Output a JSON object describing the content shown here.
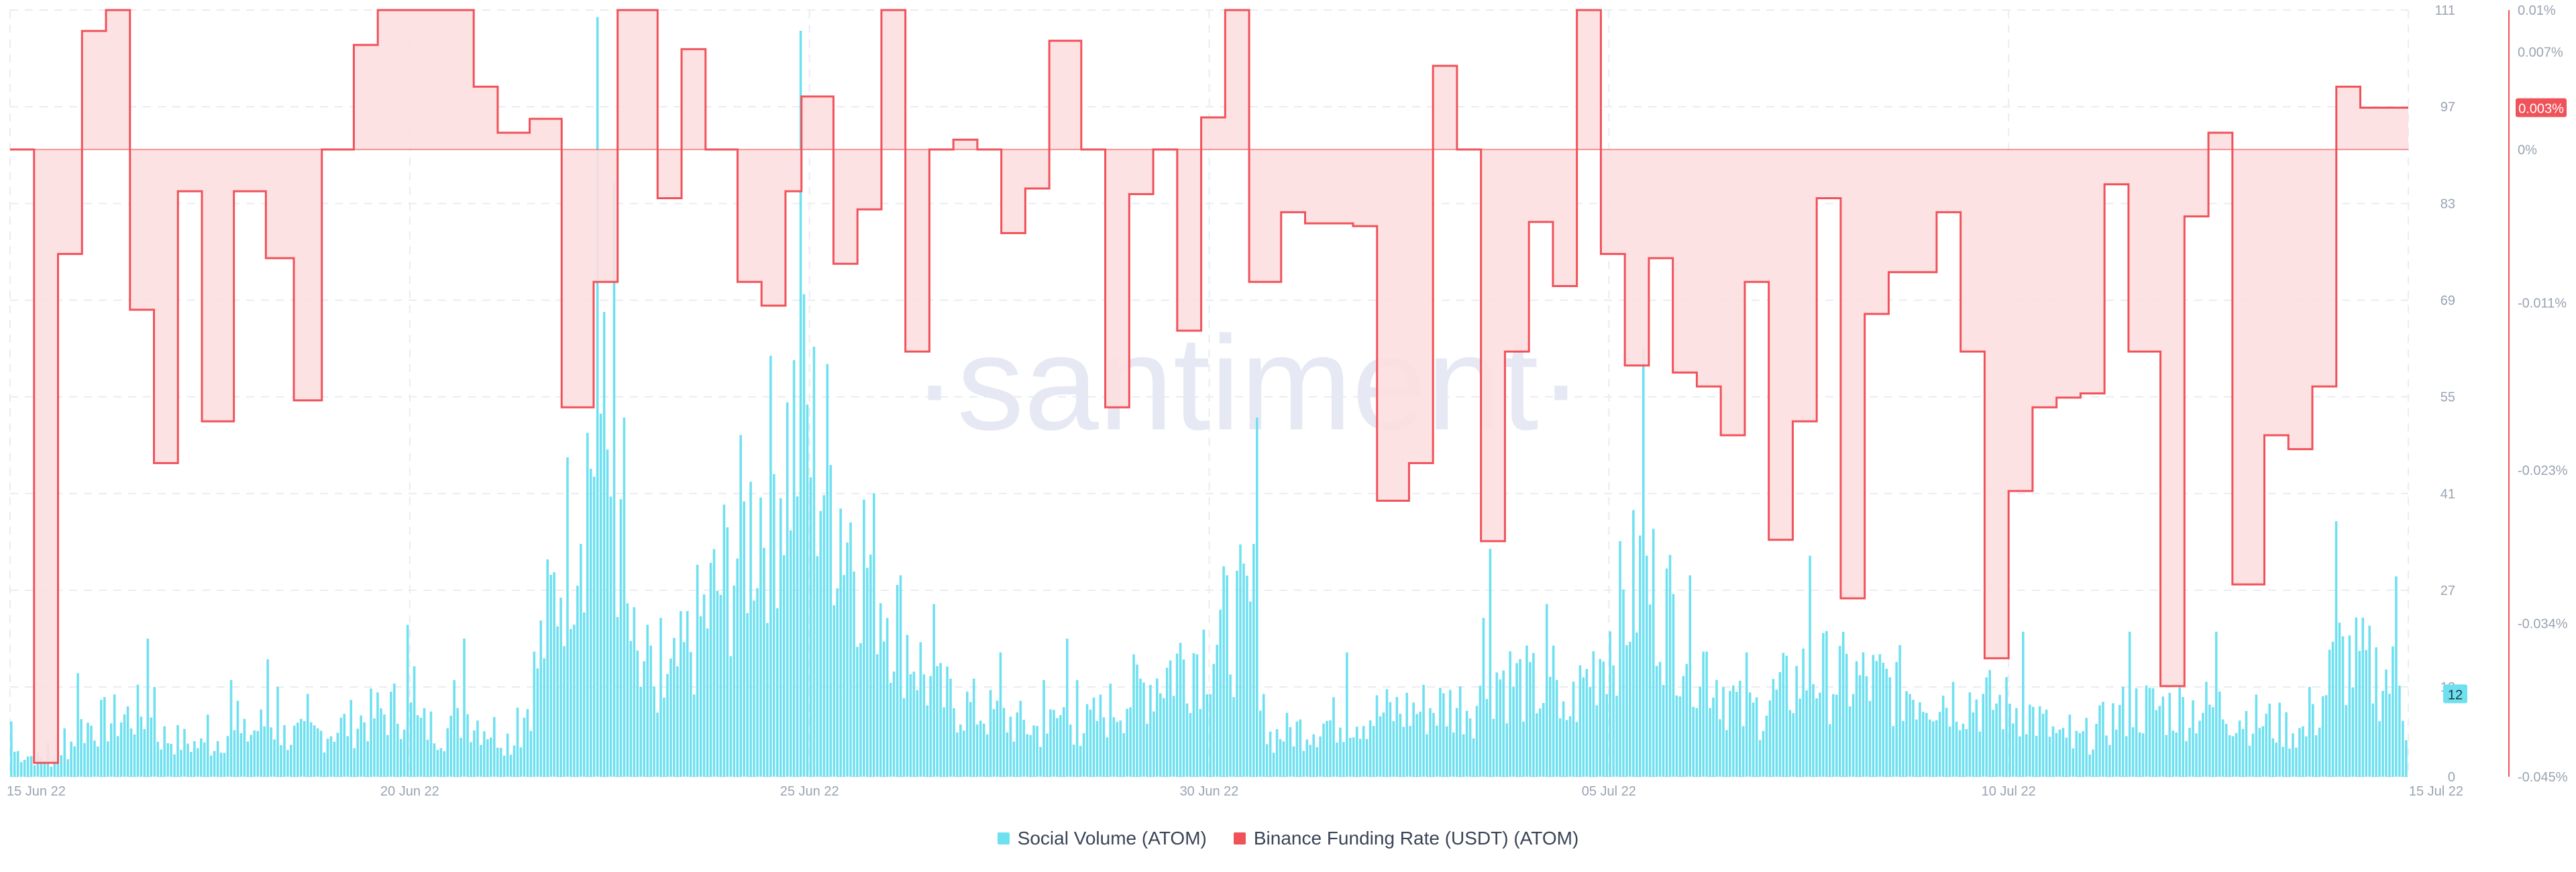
{
  "watermark": "·santiment·",
  "colors": {
    "volume": "#6fe0f0",
    "funding": "#f0525a",
    "funding_fill": "#fddfe0",
    "grid": "#e9ecf1",
    "tick": "#9aa3b1",
    "watermark": "#e6e9f3"
  },
  "legend": [
    {
      "label": "Social Volume (ATOM)",
      "color": "#6fe0f0"
    },
    {
      "label": "Binance Funding Rate (USDT) (ATOM)",
      "color": "#f0525a"
    }
  ],
  "chart_data": {
    "type": "bar+line",
    "x_ticks": [
      "15 Jun 22",
      "20 Jun 22",
      "25 Jun 22",
      "30 Jun 22",
      "05 Jul 22",
      "10 Jul 22",
      "15 Jul 22"
    ],
    "x_range_days": [
      0,
      30
    ],
    "volume_axis": {
      "ticks": [
        "0",
        "13",
        "27",
        "41",
        "55",
        "69",
        "83",
        "97",
        "111"
      ],
      "range": [
        0,
        111
      ],
      "last_value": "12"
    },
    "funding_axis": {
      "ticks": [
        "0.01%",
        "0.007%",
        "0.003%",
        "0%",
        "-0.011%",
        "-0.023%",
        "-0.034%",
        "-0.045%"
      ],
      "range": [
        -0.045,
        0.01
      ],
      "last_value": "0.003%"
    },
    "series": [
      {
        "name": "Social Volume (ATOM)",
        "x_day": [
          0,
          0.44,
          0.55,
          0.66,
          0.85,
          1.72,
          1.8,
          2.44,
          2.73,
          2.83,
          3.22,
          3.35,
          3.7,
          4.96,
          5.04,
          5.55,
          5.66,
          6.33,
          7.35,
          7.56,
          7.65,
          7.94,
          8.0,
          8.14,
          9.88,
          11.55,
          12.36,
          12.92,
          13.2,
          13.35,
          15.6,
          15.67,
          16.7,
          18.4,
          18.5,
          19.2,
          19.3,
          19.35,
          20.4,
          21.7,
          22.5,
          25.18,
          25.75,
          26.5,
          27.6,
          28.75,
          29.1,
          29.85,
          30
        ],
        "values": [
          8,
          5,
          3,
          7,
          15,
          20,
          13,
          9,
          14,
          11,
          17,
          13,
          12,
          22,
          16,
          14,
          20,
          10,
          110,
          86,
          52,
          22,
          19,
          23,
          108,
          25,
          18,
          14,
          20,
          14,
          52,
          12,
          18,
          23,
          33,
          25,
          19,
          14,
          62,
          18,
          32,
          21,
          9,
          21,
          21,
          13,
          37,
          29,
          12
        ]
      },
      {
        "name": "Binance Funding Rate (USDT) (ATOM)",
        "x_day": [
          0,
          0.3,
          0.6,
          0.9,
          1.2,
          1.5,
          1.8,
          2.1,
          2.4,
          2.8,
          3.2,
          3.55,
          3.9,
          4.3,
          4.6,
          5.0,
          5.4,
          5.8,
          6.1,
          6.5,
          6.9,
          7.3,
          7.6,
          7.8,
          8.1,
          8.4,
          8.7,
          9.1,
          9.4,
          9.7,
          9.9,
          10.3,
          10.6,
          10.9,
          11.2,
          11.5,
          11.8,
          12.1,
          12.4,
          12.7,
          13.0,
          13.4,
          13.7,
          14.0,
          14.3,
          14.6,
          14.9,
          15.2,
          15.5,
          15.9,
          16.2,
          16.5,
          16.8,
          17.1,
          17.5,
          17.8,
          18.1,
          18.4,
          18.7,
          19.0,
          19.3,
          19.6,
          19.9,
          20.2,
          20.5,
          20.8,
          21.1,
          21.4,
          21.7,
          22.0,
          22.3,
          22.6,
          22.9,
          23.2,
          23.5,
          23.8,
          24.1,
          24.4,
          24.7,
          25.0,
          25.3,
          25.6,
          25.9,
          26.2,
          26.5,
          26.9,
          27.2,
          27.5,
          27.8,
          28.2,
          28.5,
          28.8,
          29.1,
          29.4,
          29.7,
          30
        ],
        "values": [
          0.0,
          -0.044,
          -0.0075,
          0.0085,
          0.01,
          -0.0115,
          -0.0225,
          -0.003,
          -0.0195,
          -0.003,
          -0.0078,
          -0.018,
          0.0,
          0.0075,
          0.01,
          0.01,
          0.01,
          0.0045,
          0.0012,
          0.0022,
          -0.0185,
          -0.0095,
          0.01,
          0.01,
          -0.0035,
          0.0072,
          0.0,
          -0.0095,
          -0.0112,
          -0.003,
          0.0038,
          -0.0082,
          -0.0043,
          0.01,
          -0.0145,
          0.0,
          0.0007,
          0.0,
          -0.006,
          -0.0028,
          0.0078,
          0.0,
          -0.0185,
          -0.0032,
          0.0,
          -0.013,
          0.0023,
          0.01,
          -0.0095,
          -0.0045,
          -0.0053,
          -0.0053,
          -0.0055,
          -0.0252,
          -0.0225,
          0.006,
          0.0,
          -0.0281,
          -0.0145,
          -0.0052,
          -0.0098,
          0.01,
          -0.0075,
          -0.0155,
          -0.0078,
          -0.016,
          -0.017,
          -0.0205,
          -0.0095,
          -0.028,
          -0.0195,
          -0.0035,
          -0.0322,
          -0.0118,
          -0.0088,
          -0.0088,
          -0.0045,
          -0.0145,
          -0.0365,
          -0.0245,
          -0.0185,
          -0.0178,
          -0.0175,
          -0.0025,
          -0.0145,
          -0.0385,
          -0.0048,
          0.0012,
          -0.0312,
          -0.0205,
          -0.0215,
          -0.017,
          0.0045,
          0.003,
          0.003,
          0.003
        ]
      }
    ]
  }
}
